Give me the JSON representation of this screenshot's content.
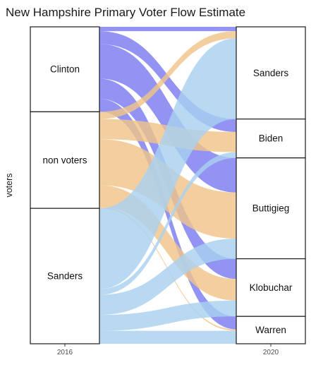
{
  "chart_data": {
    "type": "alluvial",
    "title": "New Hampshire Primary Voter Flow Estimate",
    "ylabel": "voters",
    "xlabel": "",
    "x": [
      "2016",
      "2020"
    ],
    "strata": {
      "2016": [
        "Clinton",
        "non voters",
        "Sanders"
      ],
      "2020": [
        "Sanders",
        "Biden",
        "Buttigieg",
        "Klobuchar",
        "Warren"
      ]
    },
    "colors": {
      "Clinton": "#7b7bf0",
      "non voters": "#f0c48a",
      "Sanders": "#a9d1f0"
    },
    "flows": [
      {
        "from": "Clinton",
        "to": "Sanders",
        "value": 1.5
      },
      {
        "from": "Clinton",
        "to": "Biden",
        "value": 4.5
      },
      {
        "from": "Clinton",
        "to": "Buttigieg",
        "value": 12
      },
      {
        "from": "Clinton",
        "to": "Klobuchar",
        "value": 7
      },
      {
        "from": "Clinton",
        "to": "Warren",
        "value": 4.5
      },
      {
        "from": "non voters",
        "to": "Sanders",
        "value": 2.5
      },
      {
        "from": "non voters",
        "to": "Biden",
        "value": 7
      },
      {
        "from": "non voters",
        "to": "Buttigieg",
        "value": 16
      },
      {
        "from": "non voters",
        "to": "Klobuchar",
        "value": 7.5
      },
      {
        "from": "non voters",
        "to": "Warren",
        "value": 0.5
      },
      {
        "from": "Sanders",
        "to": "Sanders",
        "value": 28
      },
      {
        "from": "Sanders",
        "to": "Biden",
        "value": 2
      },
      {
        "from": "Sanders",
        "to": "Buttigieg",
        "value": 7
      },
      {
        "from": "Sanders",
        "to": "Klobuchar",
        "value": 5.5
      },
      {
        "from": "Sanders",
        "to": "Warren",
        "value": 4.5
      }
    ]
  }
}
